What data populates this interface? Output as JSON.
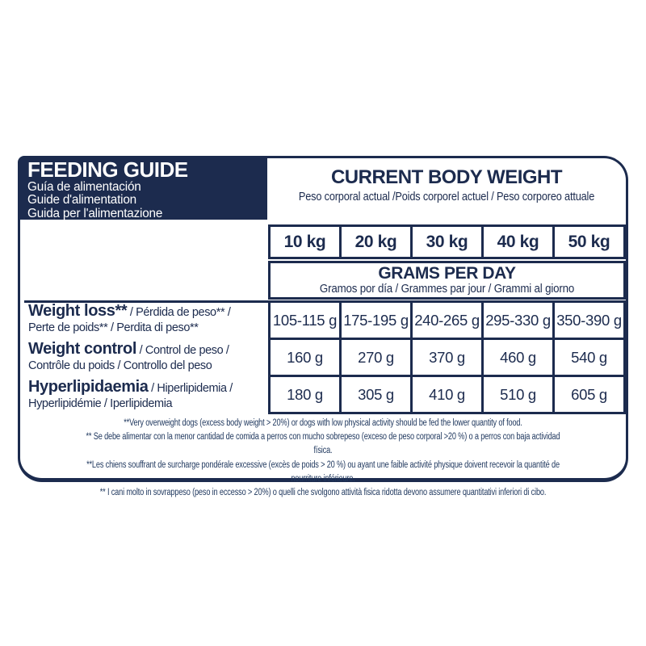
{
  "colors": {
    "navy": "#1c2b4e",
    "background": "#ffffff"
  },
  "feeding_guide": {
    "title": "FEEDING GUIDE",
    "translations": [
      "Guía de alimentación",
      "Guide d'alimentation",
      "Guida per l'alimentazione"
    ]
  },
  "body_weight": {
    "title": "CURRENT BODY WEIGHT",
    "subtitle": "Peso corporal actual /Poids corporel actuel / Peso corporeo attuale"
  },
  "grams_per_day": {
    "title": "GRAMS PER DAY",
    "subtitle": "Gramos por día / Grammes par jour / Grammi al giorno"
  },
  "table": {
    "weight_columns": [
      "10 kg",
      "20 kg",
      "30 kg",
      "40 kg",
      "50 kg"
    ],
    "rows": [
      {
        "label_bold": "Weight loss**",
        "label_rest": " / Pérdida de peso** /",
        "label_line2": "Perte de poids** / Perdita di peso**",
        "values": [
          "105-115 g",
          "175-195 g",
          "240-265 g",
          "295-330 g",
          "350-390 g"
        ]
      },
      {
        "label_bold": "Weight control",
        "label_rest": " / Control de peso /",
        "label_line2": "Contrôle du poids / Controllo del peso",
        "values": [
          "160 g",
          "270 g",
          "370 g",
          "460 g",
          "540 g"
        ]
      },
      {
        "label_bold": "Hyperlipidaemia",
        "label_rest": " / Hiperlipidemia /",
        "label_line2": "Hyperlipidémie / Iperlipidemia",
        "values": [
          "180 g",
          "305 g",
          "410 g",
          "510 g",
          "605 g"
        ]
      }
    ]
  },
  "footnotes": [
    "**Very overweight dogs (excess body weight > 20%) or dogs with low physical activity should be fed the lower quantity of food.",
    "** Se debe alimentar con la menor cantidad de comida a perros con mucho sobrepeso (exceso de peso corporal >20 %) o a perros con baja actividad física.",
    "**Les chiens souffrant de surcharge pondérale excessive (excès de poids > 20 %) ou ayant une faible activité physique doivent recevoir la quantité de nourriture inférieure.",
    "** I cani molto in sovrappeso (peso in eccesso > 20%) o quelli che svolgono attività fisica ridotta devono assumere quantitativi inferiori di cibo."
  ]
}
